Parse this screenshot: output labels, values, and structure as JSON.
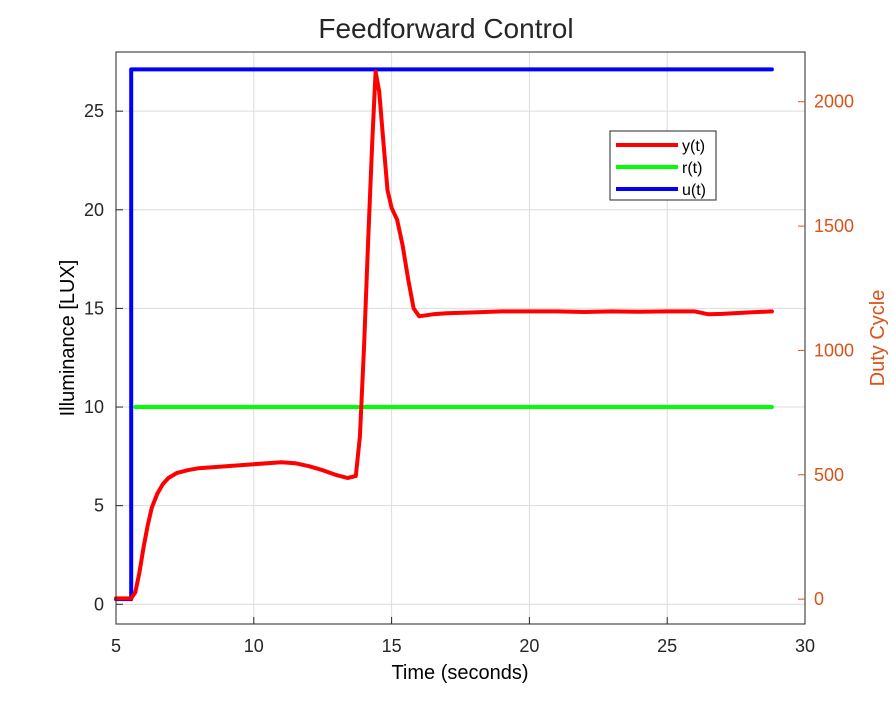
{
  "chart_data": {
    "type": "line",
    "title": "Feedforward Control",
    "xlabel": "Time (seconds)",
    "ylabel": "Illuminance [LUX]",
    "ylabel_right": "Duty Cycle",
    "xlim": [
      5,
      30
    ],
    "ylim": [
      -1,
      28
    ],
    "ylim_right": [
      -100,
      2200
    ],
    "x_ticks": [
      "5",
      "10",
      "15",
      "20",
      "25",
      "30"
    ],
    "y_ticks": [
      "0",
      "5",
      "10",
      "15",
      "20",
      "25"
    ],
    "y_ticks_right": [
      "0",
      "500",
      "1000",
      "1500",
      "2000"
    ],
    "grid": true,
    "legend_position": "upper-right",
    "series": [
      {
        "name": "y(t)",
        "axis": "left",
        "color": "#ff0000",
        "x": [
          5,
          5.55,
          5.7,
          5.85,
          6.0,
          6.15,
          6.3,
          6.5,
          6.7,
          6.9,
          7.2,
          7.6,
          8,
          9,
          10,
          11,
          11.5,
          12,
          12.5,
          13,
          13.4,
          13.7,
          13.85,
          14.0,
          14.15,
          14.3,
          14.42,
          14.55,
          14.7,
          14.85,
          15.0,
          15.2,
          15.4,
          15.6,
          15.8,
          16.0,
          16.5,
          17,
          18,
          19,
          20,
          21,
          22,
          23,
          24,
          25,
          26,
          26.5,
          27,
          28,
          28.8
        ],
        "y": [
          0.3,
          0.3,
          0.6,
          1.6,
          2.9,
          4.0,
          4.9,
          5.6,
          6.1,
          6.4,
          6.65,
          6.8,
          6.9,
          7.0,
          7.1,
          7.2,
          7.15,
          7.0,
          6.8,
          6.55,
          6.4,
          6.5,
          8.5,
          13.0,
          18.5,
          23.5,
          27.0,
          26.0,
          23.5,
          21.0,
          20.1,
          19.5,
          18.2,
          16.5,
          15.0,
          14.6,
          14.7,
          14.75,
          14.8,
          14.85,
          14.85,
          14.85,
          14.82,
          14.85,
          14.83,
          14.85,
          14.85,
          14.7,
          14.72,
          14.8,
          14.85
        ]
      },
      {
        "name": "r(t)",
        "axis": "left",
        "color": "#00ff00",
        "x": [
          5.7,
          28.8
        ],
        "y": [
          10,
          10
        ]
      },
      {
        "name": "u(t)",
        "axis": "right",
        "color": "#0000ff",
        "x": [
          5,
          5.55,
          5.55,
          28.8
        ],
        "y": [
          0,
          0,
          2130,
          2130
        ]
      }
    ]
  }
}
